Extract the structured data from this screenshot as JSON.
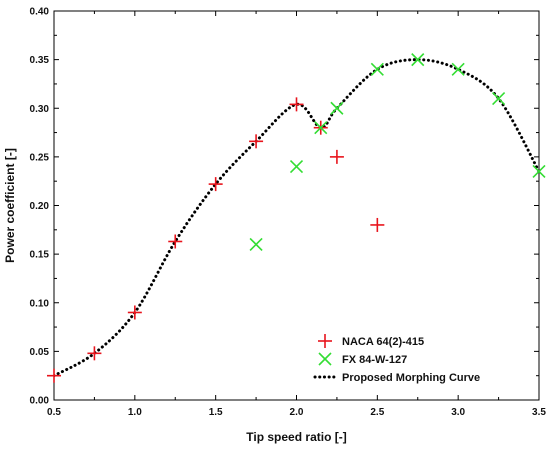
{
  "chart_data": {
    "type": "scatter",
    "xlabel": "Tip speed ratio [-]",
    "ylabel": "Power coefficient [-]",
    "xlim": [
      0.5,
      3.5
    ],
    "ylim": [
      0.0,
      0.4
    ],
    "x_ticks": [
      "0.5",
      "1.0",
      "1.5",
      "2.0",
      "2.5",
      "3.0",
      "3.5"
    ],
    "y_ticks": [
      "0.00",
      "0.05",
      "0.10",
      "0.15",
      "0.20",
      "0.25",
      "0.30",
      "0.35",
      "0.40"
    ],
    "grid": false,
    "legend_position": "bottom-right",
    "series": [
      {
        "name": "NACA 64(2)-415",
        "marker": "plus",
        "color": "#e8141c",
        "points": [
          [
            0.5,
            0.025
          ],
          [
            0.75,
            0.048
          ],
          [
            1.0,
            0.09
          ],
          [
            1.25,
            0.163
          ],
          [
            1.5,
            0.222
          ],
          [
            1.75,
            0.266
          ],
          [
            2.0,
            0.304
          ],
          [
            2.15,
            0.28
          ],
          [
            2.25,
            0.25
          ],
          [
            2.5,
            0.18
          ]
        ]
      },
      {
        "name": "FX 84-W-127",
        "marker": "cross",
        "color": "#33dd33",
        "points": [
          [
            1.75,
            0.16
          ],
          [
            2.0,
            0.24
          ],
          [
            2.15,
            0.28
          ],
          [
            2.25,
            0.3
          ],
          [
            2.5,
            0.34
          ],
          [
            2.75,
            0.35
          ],
          [
            3.0,
            0.34
          ],
          [
            3.25,
            0.31
          ],
          [
            3.5,
            0.235
          ]
        ]
      },
      {
        "name": "Proposed Morphing Curve",
        "marker": "dotted-line",
        "color": "#000000",
        "points": [
          [
            0.5,
            0.025
          ],
          [
            0.75,
            0.048
          ],
          [
            1.0,
            0.09
          ],
          [
            1.25,
            0.163
          ],
          [
            1.5,
            0.222
          ],
          [
            1.75,
            0.266
          ],
          [
            2.0,
            0.304
          ],
          [
            2.15,
            0.28
          ],
          [
            2.25,
            0.3
          ],
          [
            2.5,
            0.34
          ],
          [
            2.75,
            0.35
          ],
          [
            3.0,
            0.34
          ],
          [
            3.25,
            0.31
          ],
          [
            3.5,
            0.235
          ]
        ]
      }
    ]
  }
}
